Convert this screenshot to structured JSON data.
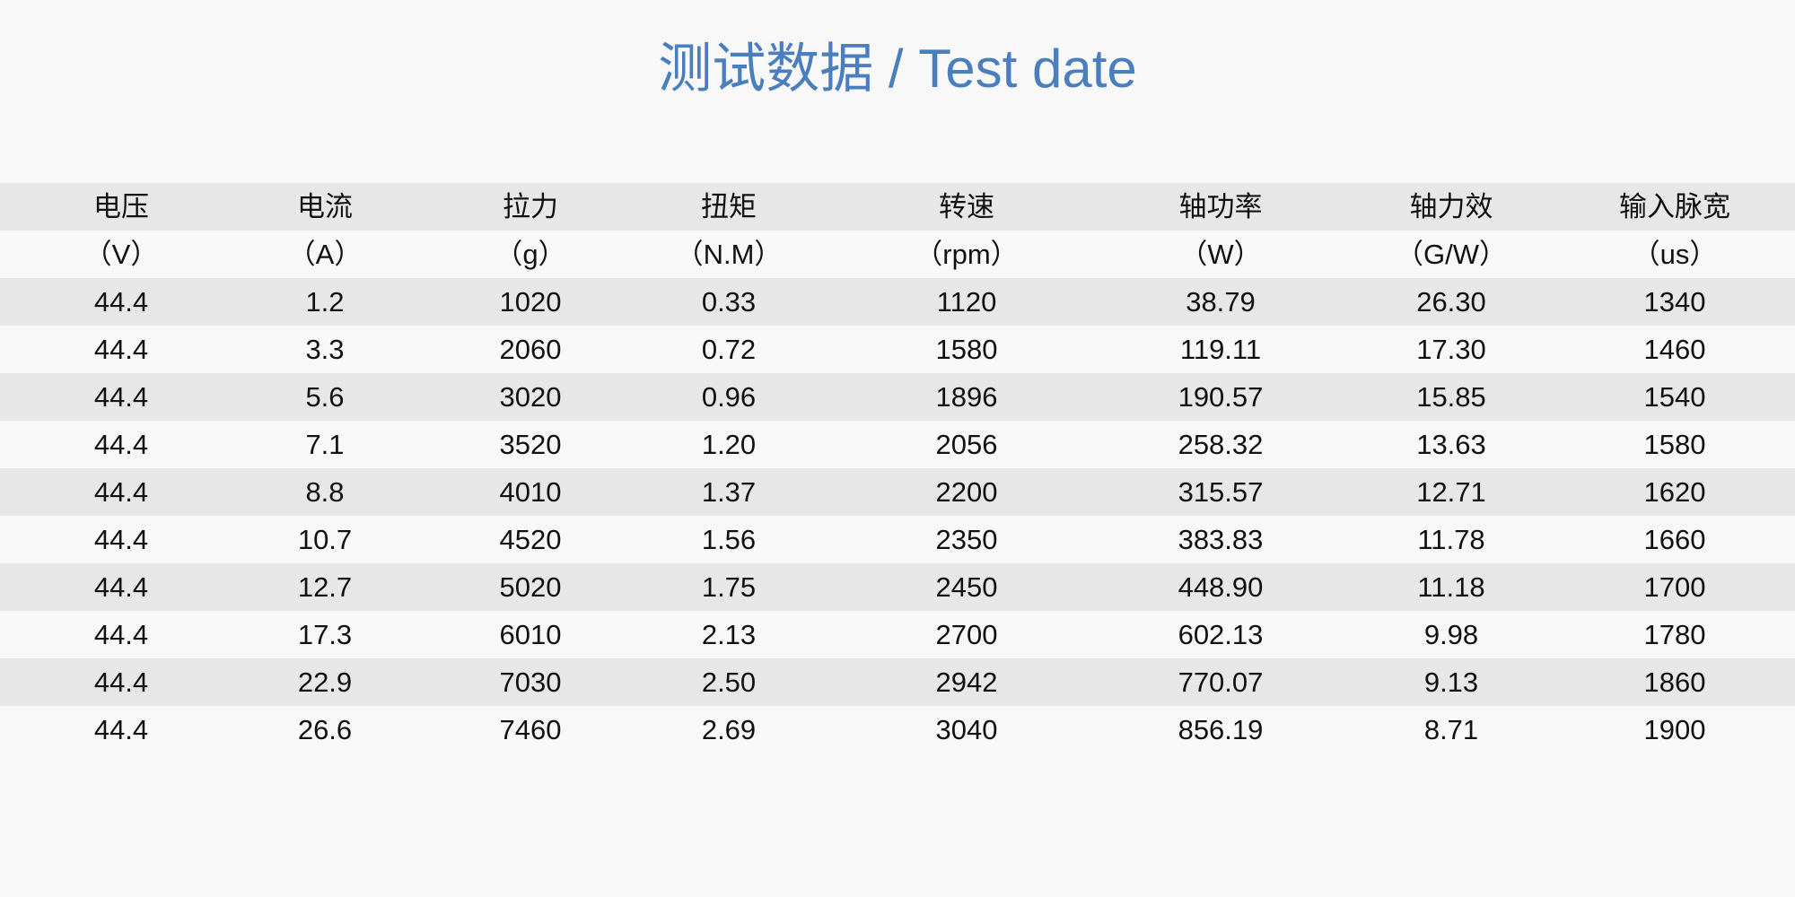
{
  "title": "测试数据 / Test date",
  "colors": {
    "title": "#4a7ebf",
    "shade": "#e7e7e7",
    "background": "#f8f8f8"
  },
  "table": {
    "headers": [
      "电压",
      "电流",
      "拉力",
      "扭矩",
      "转速",
      "轴功率",
      "轴力效",
      "输入脉宽"
    ],
    "units": [
      "（V）",
      "（A）",
      "（g）",
      "（N.M）",
      "（rpm）",
      "（W）",
      "（G/W）",
      "（us）"
    ],
    "rows": [
      [
        "44.4",
        "1.2",
        "1020",
        "0.33",
        "1120",
        "38.79",
        "26.30",
        "1340"
      ],
      [
        "44.4",
        "3.3",
        "2060",
        "0.72",
        "1580",
        "119.11",
        "17.30",
        "1460"
      ],
      [
        "44.4",
        "5.6",
        "3020",
        "0.96",
        "1896",
        "190.57",
        "15.85",
        "1540"
      ],
      [
        "44.4",
        "7.1",
        "3520",
        "1.20",
        "2056",
        "258.32",
        "13.63",
        "1580"
      ],
      [
        "44.4",
        "8.8",
        "4010",
        "1.37",
        "2200",
        "315.57",
        "12.71",
        "1620"
      ],
      [
        "44.4",
        "10.7",
        "4520",
        "1.56",
        "2350",
        "383.83",
        "11.78",
        "1660"
      ],
      [
        "44.4",
        "12.7",
        "5020",
        "1.75",
        "2450",
        "448.90",
        "11.18",
        "1700"
      ],
      [
        "44.4",
        "17.3",
        "6010",
        "2.13",
        "2700",
        "602.13",
        "9.98",
        "1780"
      ],
      [
        "44.4",
        "22.9",
        "7030",
        "2.50",
        "2942",
        "770.07",
        "9.13",
        "1860"
      ],
      [
        "44.4",
        "26.6",
        "7460",
        "2.69",
        "3040",
        "856.19",
        "8.71",
        "1900"
      ]
    ]
  }
}
